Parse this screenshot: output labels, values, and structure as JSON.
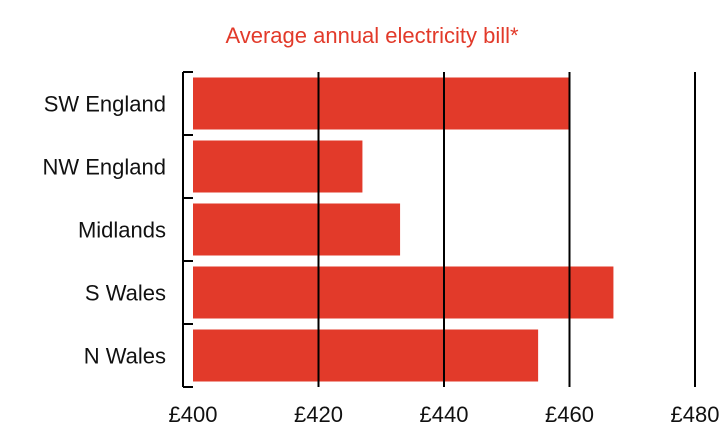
{
  "chart_data": {
    "type": "bar",
    "orientation": "horizontal",
    "title": "Average annual electricity bill*",
    "xlabel": "",
    "ylabel": "",
    "categories": [
      "SW England",
      "NW England",
      "Midlands",
      "S Wales",
      "N Wales"
    ],
    "values": [
      460,
      427,
      433,
      467,
      455
    ],
    "xlim": [
      400,
      480
    ],
    "ticks": [
      400,
      420,
      440,
      460,
      480
    ],
    "tick_labels": [
      "£400",
      "£420",
      "£440",
      "£460",
      "£480"
    ],
    "grid": true,
    "legend": "none",
    "colors": {
      "bar": "#e23a2a",
      "title": "#e23a2a",
      "grid": "#000000",
      "text": "#111111"
    }
  }
}
